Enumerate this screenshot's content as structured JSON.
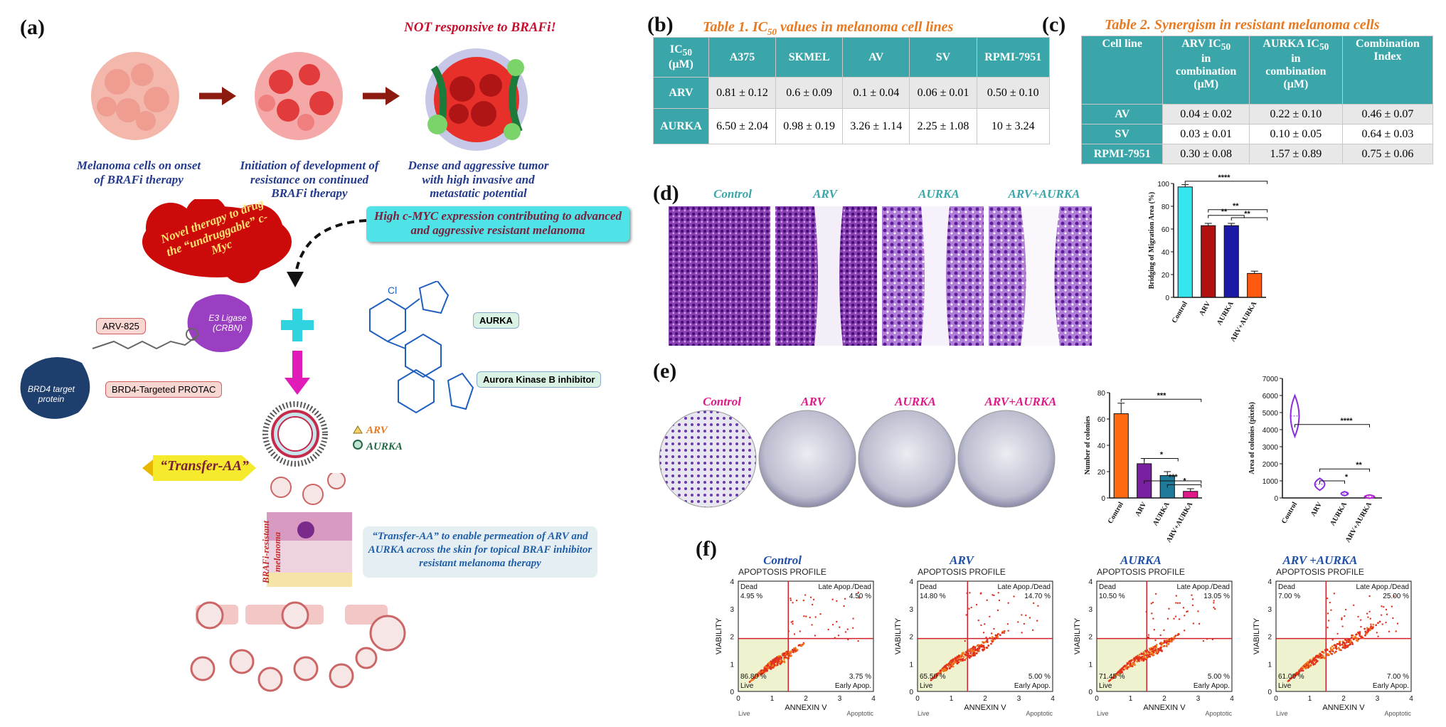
{
  "panels": {
    "a": "(a)",
    "b": "(b)",
    "c": "(c)",
    "d": "(d)",
    "e": "(e)",
    "f": "(f)"
  },
  "panel_a": {
    "not_responsive": "NOT responsive to BRAFi!",
    "stage1": "Melanoma cells on onset of BRAFi therapy",
    "stage2": "Initiation of development of resistance on continued BRAFi therapy",
    "stage3": "Dense and aggressive tumor with high invasive and metastatic potential",
    "cmyc_box": "High c-MYC expression contributing to advanced and aggressive resistant melanoma",
    "novel_therapy": "Novel therapy to drug the “undruggable” c-Myc",
    "arv825": "ARV-825",
    "e3_ligase": "E3 Ligase (CRBN)",
    "brd4": "BRD4 target protein",
    "protac": "BRD4-Targeted PROTAC",
    "aurka_tag": "AURKA",
    "aurora": "Aurora Kinase B inhibitor",
    "legend_arv": "ARV",
    "legend_aurka": "AURKA",
    "transfer": "“Transfer-AA”",
    "resistant": "BRAFi-resistant melanoma",
    "skin_caption": "“Transfer-AA” to enable permeation of ARV and AURKA across the skin for topical BRAF inhibitor resistant melanoma therapy"
  },
  "table1": {
    "title": "Table 1. IC50 values in melanoma cell lines",
    "header": [
      "IC50 (μM)",
      "A375",
      "SKMEL",
      "AV",
      "SV",
      "RPMI-7951"
    ],
    "rows": [
      [
        "ARV",
        "0.81 ± 0.12",
        "0.6 ± 0.09",
        "0.1 ± 0.04",
        "0.06 ± 0.01",
        "0.50 ± 0.10"
      ],
      [
        "AURKA",
        "6.50 ± 2.04",
        "0.98 ± 0.19",
        "3.26 ± 1.14",
        "2.25 ± 1.08",
        "10 ± 3.24"
      ]
    ]
  },
  "table2": {
    "title": "Table 2. Synergism in resistant melanoma cells",
    "header": [
      "Cell line",
      "ARV IC50 in combination (μM)",
      "AURKA IC50 in combination (μM)",
      "Combination Index"
    ],
    "rows": [
      [
        "AV",
        "0.04 ± 0.02",
        "0.22 ± 0.10",
        "0.46 ± 0.07"
      ],
      [
        "SV",
        "0.03 ± 0.01",
        "0.10 ± 0.05",
        "0.64 ± 0.03"
      ],
      [
        "RPMI-7951",
        "0.30 ± 0.08",
        "1.57 ± 0.89",
        "0.75 ± 0.06"
      ]
    ]
  },
  "panel_d": {
    "labels": [
      "Control",
      "ARV",
      "AURKA",
      "ARV+AURKA"
    ],
    "colors": {
      "label": "#3aa6aa"
    }
  },
  "panel_e": {
    "labels": [
      "Control",
      "ARV",
      "AURKA",
      "ARV+AURKA"
    ],
    "colors": {
      "label": "#e0188a"
    }
  },
  "panel_f": {
    "plots": [
      {
        "name": "Control",
        "title": "APOPTOSIS PROFILE",
        "q_dead": "4.95 %",
        "q_late": "4.50 %",
        "q_live": "86.80 %",
        "q_early": "3.75 %"
      },
      {
        "name": "ARV",
        "title": "APOPTOSIS PROFILE",
        "q_dead": "14.80 %",
        "q_late": "14.70 %",
        "q_live": "65.50 %",
        "q_early": "5.00 %"
      },
      {
        "name": "AURKA",
        "title": "APOPTOSIS PROFILE",
        "q_dead": "10.50 %",
        "q_late": "13.05 %",
        "q_live": "71.45 %",
        "q_early": "5.00 %"
      },
      {
        "name": "ARV +AURKA",
        "title": "APOPTOSIS PROFILE",
        "q_dead": "7.00 %",
        "q_late": "25.00 %",
        "q_live": "61.00 %",
        "q_early": "7.00 %"
      }
    ],
    "quadrants": {
      "dead": "Dead",
      "late": "Late Apop./Dead",
      "live": "Live",
      "early": "Early Apop."
    },
    "ylabel": "VIABILITY",
    "xlabel": "ANNEXIN V",
    "x_left": "Live",
    "x_right": "Apoptotic",
    "ticks": [
      "0",
      "1",
      "2",
      "3",
      "4"
    ]
  },
  "chart_data": [
    {
      "type": "bar",
      "panel": "d",
      "categories": [
        "Control",
        "ARV",
        "AURKA",
        "ARV+AURKA"
      ],
      "values": [
        97,
        63,
        63,
        21
      ],
      "errors": [
        2,
        2,
        2,
        2
      ],
      "colors": [
        "#33e6f0",
        "#b01010",
        "#1a1aa6",
        "#ff5a0f"
      ],
      "ylabel": "Bridging of Migration Area (%)",
      "ylim": [
        0,
        100
      ],
      "yticks": [
        0,
        20,
        40,
        60,
        80,
        100
      ],
      "significance": [
        "****",
        "**",
        "**",
        "**"
      ]
    },
    {
      "type": "bar",
      "panel": "e",
      "categories": [
        "Control",
        "ARV",
        "AURKA",
        "ARV+AURKA"
      ],
      "values": [
        64,
        26,
        17,
        5
      ],
      "errors": [
        8,
        4,
        3,
        2
      ],
      "colors": [
        "#ff6a10",
        "#7a1fa0",
        "#1f7a9a",
        "#e0188a"
      ],
      "ylabel": "Number of colonies",
      "ylim": [
        0,
        80
      ],
      "yticks": [
        0,
        20,
        40,
        60,
        80
      ],
      "significance": [
        "*",
        "*",
        "***",
        "***"
      ]
    },
    {
      "type": "violin",
      "panel": "e",
      "categories": [
        "Control",
        "ARV",
        "AURKA",
        "ARV+AURKA"
      ],
      "values": [
        4800,
        800,
        250,
        80
      ],
      "colors": [
        "#8a2be2",
        "#8a2be2",
        "#8a2be2",
        "#b01fd0"
      ],
      "ylabel": "Area of colonies (pixels)",
      "ylim": [
        0,
        7000
      ],
      "yticks": [
        0,
        1000,
        2000,
        3000,
        4000,
        5000,
        6000,
        7000
      ],
      "significance": [
        "*",
        "**",
        "****"
      ]
    }
  ]
}
